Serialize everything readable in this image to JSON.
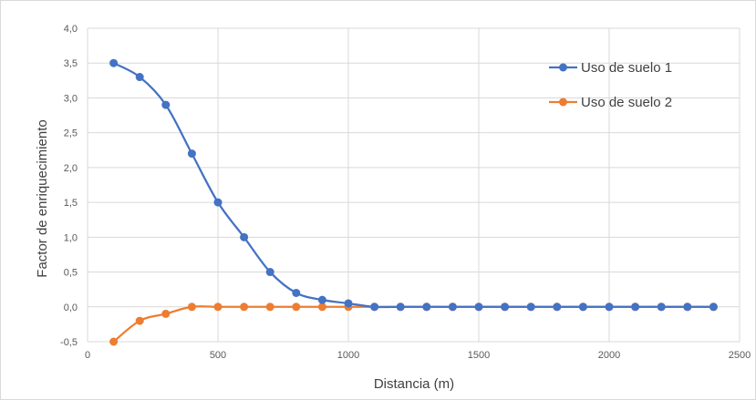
{
  "chart_data": {
    "type": "line",
    "title": "",
    "xlabel": "Distancia (m)",
    "ylabel": "Factor de enriquecimiento",
    "xlim": [
      0,
      2500
    ],
    "ylim": [
      -0.5,
      4.0
    ],
    "xticks": [
      0,
      500,
      1000,
      1500,
      2000,
      2500
    ],
    "xtick_labels": [
      "0",
      "500",
      "1000",
      "1500",
      "2000",
      "2500"
    ],
    "yticks": [
      -0.5,
      0.0,
      0.5,
      1.0,
      1.5,
      2.0,
      2.5,
      3.0,
      3.5,
      4.0
    ],
    "ytick_labels": [
      "-0,5",
      "0,0",
      "0,5",
      "1,0",
      "1,5",
      "2,0",
      "2,5",
      "3,0",
      "3,5",
      "4,0"
    ],
    "grid": true,
    "smoothed": true,
    "legend_position": "top-right",
    "x": [
      100,
      200,
      300,
      400,
      500,
      600,
      700,
      800,
      900,
      1000,
      1100,
      1200,
      1300,
      1400,
      1500,
      1600,
      1700,
      1800,
      1900,
      2000,
      2100,
      2200,
      2300,
      2400
    ],
    "series": [
      {
        "name": "Uso de suelo 1",
        "color": "#4472c4",
        "values": [
          3.5,
          3.3,
          2.9,
          2.2,
          1.5,
          1.0,
          0.5,
          0.2,
          0.1,
          0.05,
          0.0,
          0.0,
          0.0,
          0.0,
          0.0,
          0.0,
          0.0,
          0.0,
          0.0,
          0.0,
          0.0,
          0.0,
          0.0,
          0.0
        ]
      },
      {
        "name": "Uso de suelo 2",
        "color": "#ed7d31",
        "values": [
          -0.5,
          -0.2,
          -0.1,
          0.0,
          0.0,
          0.0,
          0.0,
          0.0,
          0.0,
          0.0,
          0.0,
          0.0,
          0.0,
          0.0,
          0.0,
          0.0,
          0.0,
          0.0,
          0.0,
          0.0,
          0.0,
          0.0,
          0.0,
          0.0
        ]
      }
    ]
  }
}
